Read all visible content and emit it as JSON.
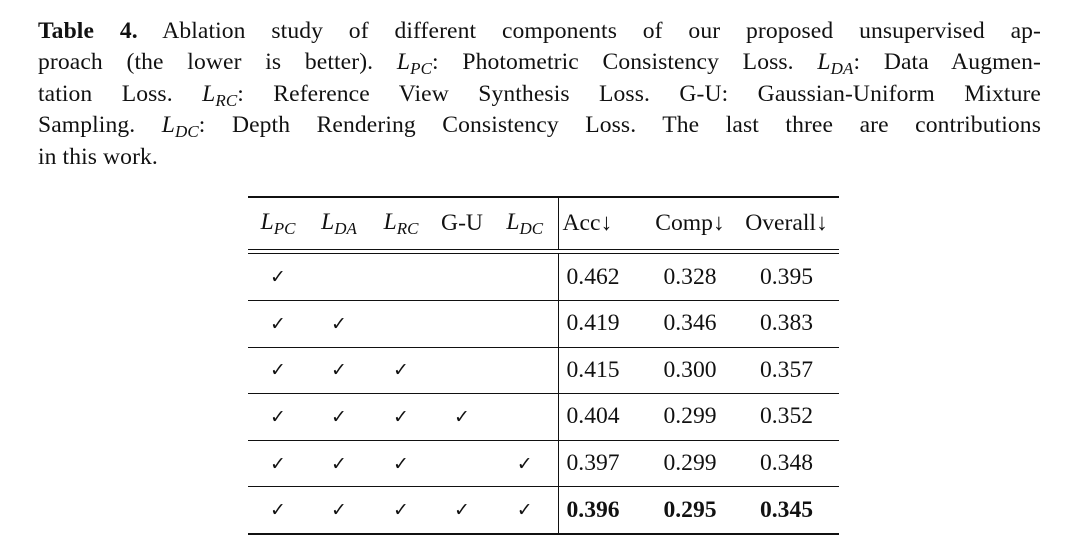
{
  "caption": {
    "label": "Table 4.",
    "lines": [
      " Ablation study of different components of our proposed unsupervised ap-",
      "proach (the lower is better). ",
      "tation Loss. ",
      "Sampling. ",
      "in this work."
    ],
    "line2_a": "proach (the lower is better). ",
    "line2_b": ": Photometric Consistency Loss. ",
    "line2_c": ": Data Augmen-",
    "line3_a": "tation Loss. ",
    "line3_b": ": Reference View Synthesis Loss. G-U: Gaussian-Uniform Mixture",
    "line4_a": "Sampling. ",
    "line4_b": ": Depth Rendering Consistency Loss. The last three are contributions",
    "line5": "in this work."
  },
  "symbols": {
    "L": "L",
    "pc": "PC",
    "da": "DA",
    "rc": "RC",
    "dc": "DC"
  },
  "table": {
    "headers": {
      "gu": "G-U",
      "acc": "Acc↓",
      "comp": "Comp↓",
      "overall": "Overall↓"
    },
    "check_mark": "✓",
    "rows": [
      {
        "pc": "✓",
        "da": "",
        "rc": "",
        "gu": "",
        "dc": "",
        "acc": "0.462",
        "comp": "0.328",
        "overall": "0.395"
      },
      {
        "pc": "✓",
        "da": "✓",
        "rc": "",
        "gu": "",
        "dc": "",
        "acc": "0.419",
        "comp": "0.346",
        "overall": "0.383"
      },
      {
        "pc": "✓",
        "da": "✓",
        "rc": "✓",
        "gu": "",
        "dc": "",
        "acc": "0.415",
        "comp": "0.300",
        "overall": "0.357"
      },
      {
        "pc": "✓",
        "da": "✓",
        "rc": "✓",
        "gu": "✓",
        "dc": "",
        "acc": "0.404",
        "comp": "0.299",
        "overall": "0.352"
      },
      {
        "pc": "✓",
        "da": "✓",
        "rc": "✓",
        "gu": "",
        "dc": "✓",
        "acc": "0.397",
        "comp": "0.299",
        "overall": "0.348"
      },
      {
        "pc": "✓",
        "da": "✓",
        "rc": "✓",
        "gu": "✓",
        "dc": "✓",
        "acc": "0.396",
        "comp": "0.295",
        "overall": "0.345"
      }
    ]
  }
}
